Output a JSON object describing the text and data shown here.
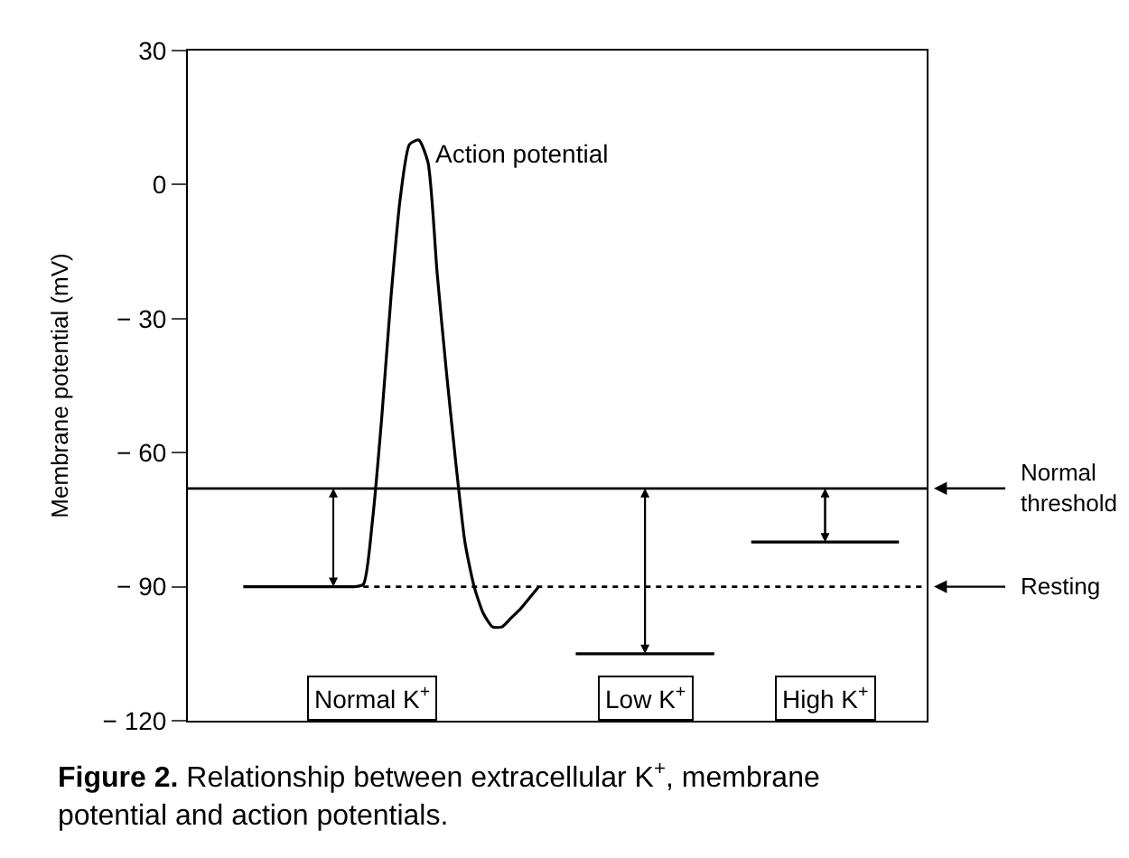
{
  "chart_data": {
    "type": "line",
    "ylabel": "Membrane potential (mV)",
    "categories": [
      null,
      null,
      null,
      null,
      null,
      null,
      null,
      null,
      null,
      null,
      null,
      null,
      null,
      null,
      null,
      null,
      null,
      null,
      null,
      null,
      null,
      null,
      null,
      null,
      null,
      null,
      null,
      null,
      null,
      null,
      null,
      null,
      null,
      null,
      null,
      null,
      null,
      null,
      null,
      null,
      null,
      null,
      null,
      null,
      null,
      null,
      null,
      null,
      null,
      null,
      null,
      null,
      null,
      null,
      null,
      null,
      null,
      null,
      null,
      null,
      null,
      null,
      null,
      null,
      null,
      null,
      null,
      null,
      null,
      null,
      null,
      null,
      null,
      null,
      null,
      null,
      null,
      null,
      null,
      null,
      null
    ],
    "series": [
      {
        "color": "#000000",
        "values": [
          null,
          null,
          null,
          null,
          null,
          null,
          -90,
          -90,
          -90,
          -90,
          -90,
          -90,
          -90,
          -90,
          -90,
          -90,
          -90,
          -90,
          -90,
          -89.5,
          -75,
          -52,
          -25,
          -3,
          9,
          10,
          5,
          -20,
          -42,
          -62,
          -80,
          -90,
          -96,
          -99,
          -99,
          -97,
          -95,
          -92.5,
          -90,
          null,
          null,
          null,
          null,
          null,
          null,
          null,
          null,
          null,
          null,
          null,
          null,
          null,
          null,
          null,
          null,
          null,
          null,
          null,
          null,
          null,
          null,
          null,
          null,
          null,
          null,
          null,
          null,
          null,
          null,
          null,
          null,
          null,
          null,
          null,
          null,
          null,
          null,
          null,
          null,
          null,
          null
        ]
      },
      {
        "color": "#000000",
        "values": [
          null,
          null,
          null,
          null,
          null,
          null,
          null,
          null,
          null,
          null,
          null,
          null,
          null,
          null,
          null,
          null,
          null,
          null,
          null,
          null,
          null,
          null,
          null,
          null,
          null,
          null,
          null,
          null,
          null,
          null,
          null,
          null,
          null,
          null,
          null,
          null,
          null,
          null,
          null,
          null,
          null,
          null,
          -105,
          null,
          null,
          null,
          null,
          null,
          null,
          null,
          null,
          null,
          null,
          null,
          null,
          null,
          null,
          -105,
          null,
          null,
          null,
          null,
          null,
          null,
          null,
          null,
          null,
          null,
          null,
          null,
          null,
          null,
          null,
          null,
          null,
          null,
          null,
          null,
          null,
          null,
          null
        ]
      },
      {
        "color": "#000000",
        "values": [
          null,
          null,
          null,
          null,
          null,
          null,
          null,
          null,
          null,
          null,
          null,
          null,
          null,
          null,
          null,
          null,
          null,
          null,
          null,
          null,
          null,
          null,
          null,
          null,
          null,
          null,
          null,
          null,
          null,
          null,
          null,
          null,
          null,
          null,
          null,
          null,
          null,
          null,
          null,
          null,
          null,
          null,
          null,
          null,
          null,
          null,
          null,
          null,
          null,
          null,
          null,
          null,
          null,
          null,
          null,
          null,
          null,
          null,
          null,
          null,
          null,
          -80,
          null,
          null,
          null,
          null,
          null,
          null,
          null,
          null,
          null,
          null,
          null,
          null,
          null,
          null,
          null,
          -80,
          null,
          null,
          null
        ]
      }
    ],
    "ylim": [
      -120,
      30
    ],
    "yticks": [
      {
        "value": 30,
        "label": "30"
      },
      {
        "value": 0,
        "label": "0"
      },
      {
        "value": -30,
        "label": "− 30"
      },
      {
        "value": -60,
        "label": "− 60"
      },
      {
        "value": -90,
        "label": "− 90"
      },
      {
        "value": -120,
        "label": "− 120"
      }
    ],
    "tick_labels": "y",
    "marker": "none",
    "line_style": "solid",
    "ref_lines": [
      {
        "axis": "y",
        "value": -68,
        "label": "Normal threshold",
        "color": "#000000",
        "line_style": "solid"
      },
      {
        "axis": "y",
        "value": -90,
        "label": "Resting",
        "color": "#000000",
        "line_style": "dotted"
      }
    ],
    "annotations": [
      "Action potential",
      "Normal K$^{+}$",
      "Low K$^{+}$",
      "High K$^{+}$",
      "Figure 2.",
      "Relationship between extracellular K$^{+}$, membrane potential and action potentials."
    ]
  }
}
